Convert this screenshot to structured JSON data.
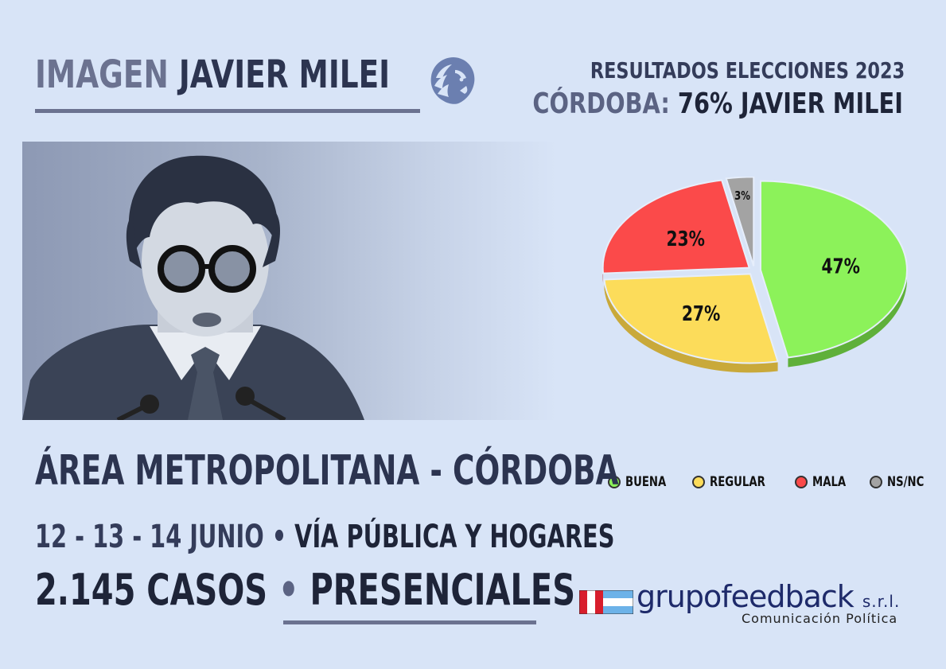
{
  "header": {
    "title_prefix": "IMAGEN",
    "title_name": "JAVIER MILEI"
  },
  "results": {
    "line1": "RESULTADOS ELECCIONES 2023",
    "line2_region": "CÓRDOBA:",
    "line2_value": "76% JAVIER MILEI"
  },
  "survey": {
    "area": "ÁREA METROPOLITANA - CÓRDOBA",
    "dates": "12 - 13 - 14 JUNIO",
    "separator": "•",
    "method": "VÍA PÚBLICA Y HOGARES",
    "cases": "2.145 CASOS",
    "mode": "PRESENCIALES"
  },
  "chart_data": {
    "type": "pie",
    "categories": [
      "BUENA",
      "REGULAR",
      "MALA",
      "NS/NC"
    ],
    "values": [
      47,
      27,
      23,
      3
    ],
    "labels": [
      "47%",
      "27%",
      "23%",
      "3%"
    ],
    "colors": [
      "#8cf25a",
      "#fcdc5a",
      "#fb4a4a",
      "#a3a3a3"
    ],
    "side_colors": [
      "#5fb03a",
      "#c9a93a",
      "#b83030",
      "#6e6e6e"
    ],
    "legend_position": "bottom",
    "style": "3d-exploded"
  },
  "logo": {
    "name": "grupofeedback",
    "suffix": "s.r.l.",
    "tagline": "Comunicación Política"
  },
  "icons": {
    "brand": "lion-head-icon",
    "flag": "argentina-peru-flag-icon"
  }
}
